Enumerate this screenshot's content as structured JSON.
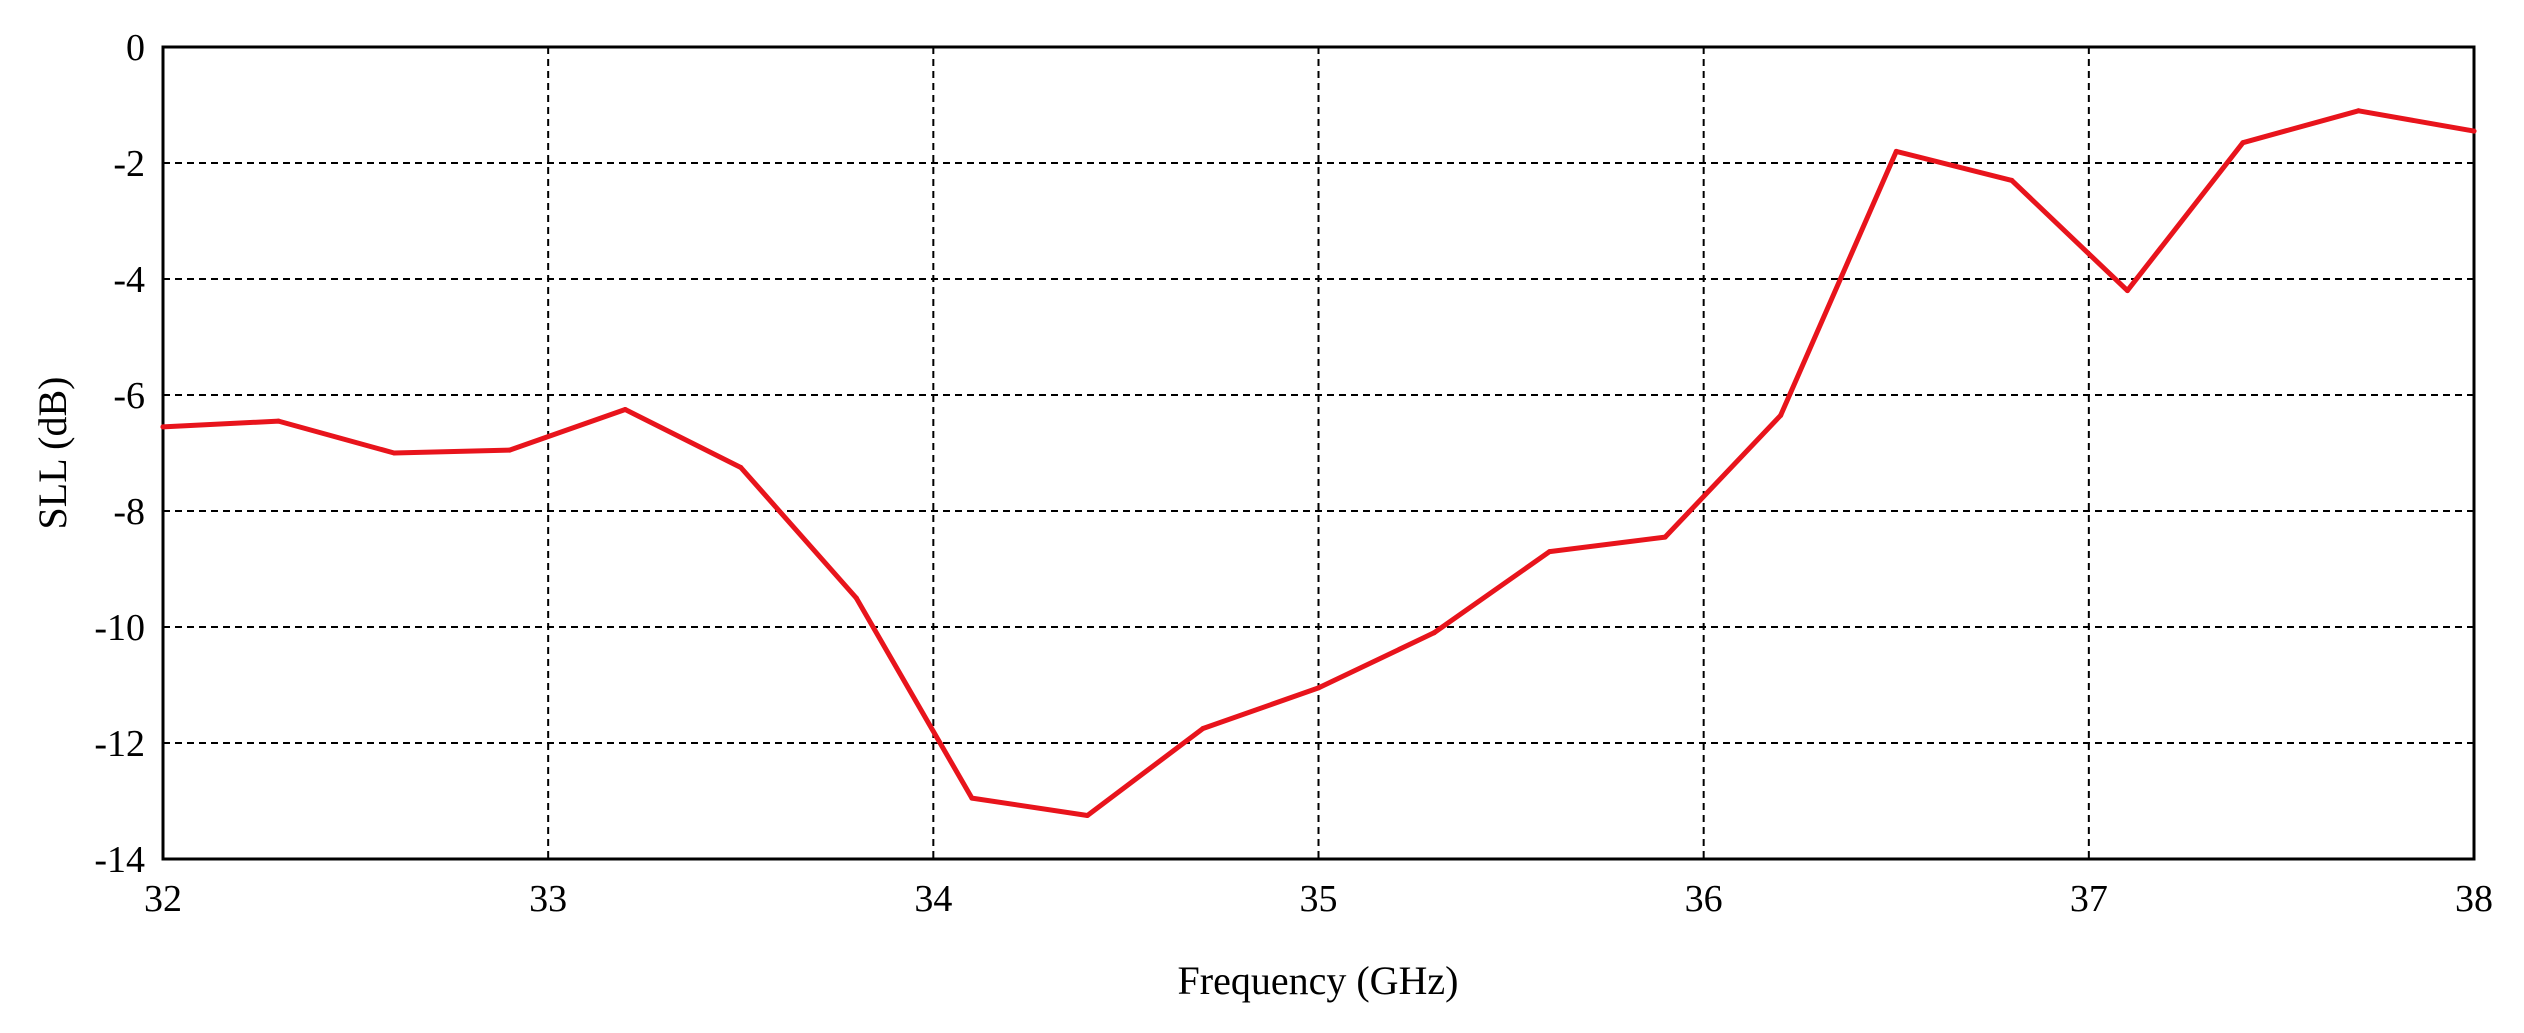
{
  "chart_data": {
    "type": "line",
    "title": "",
    "xlabel": "Frequency (GHz)",
    "ylabel": "SLL (dB)",
    "xlim": [
      32,
      38
    ],
    "ylim": [
      -14,
      0
    ],
    "x_ticks": [
      32,
      33,
      34,
      35,
      36,
      37,
      38
    ],
    "y_ticks": [
      0,
      -2,
      -4,
      -6,
      -8,
      -10,
      -12,
      -14
    ],
    "grid": true,
    "legend": "none",
    "series": [
      {
        "color": "#e8141c",
        "points": [
          [
            32.0,
            -6.55
          ],
          [
            32.3,
            -6.45
          ],
          [
            32.6,
            -7.0
          ],
          [
            32.9,
            -6.95
          ],
          [
            33.2,
            -6.25
          ],
          [
            33.5,
            -7.25
          ],
          [
            33.8,
            -9.5
          ],
          [
            34.1,
            -12.95
          ],
          [
            34.4,
            -13.25
          ],
          [
            34.7,
            -11.75
          ],
          [
            35.0,
            -11.05
          ],
          [
            35.3,
            -10.1
          ],
          [
            35.6,
            -8.7
          ],
          [
            35.9,
            -8.45
          ],
          [
            36.2,
            -6.35
          ],
          [
            36.5,
            -1.8
          ],
          [
            36.8,
            -2.3
          ],
          [
            37.1,
            -4.2
          ],
          [
            37.4,
            -1.65
          ],
          [
            37.7,
            -1.1
          ],
          [
            38.0,
            -1.45
          ]
        ]
      }
    ]
  }
}
